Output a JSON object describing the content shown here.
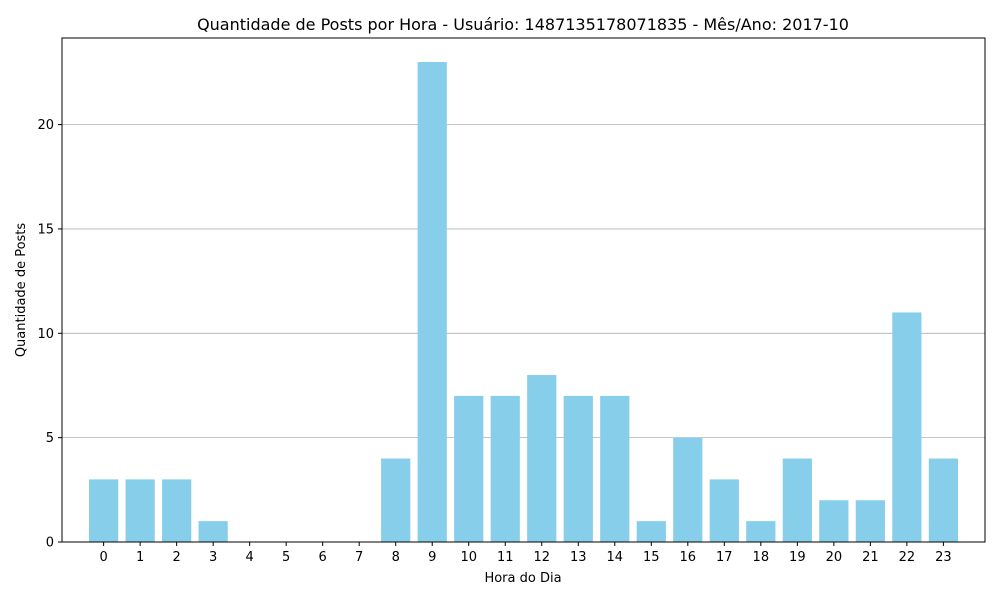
{
  "chart_data": {
    "type": "bar",
    "title": "Quantidade de Posts por Hora - Usuário: 1487135178071835 - Mês/Ano: 2017-10",
    "xlabel": "Hora do Dia",
    "ylabel": "Quantidade de Posts",
    "categories": [
      "0",
      "1",
      "2",
      "3",
      "4",
      "5",
      "6",
      "7",
      "8",
      "9",
      "10",
      "11",
      "12",
      "13",
      "14",
      "15",
      "16",
      "17",
      "18",
      "19",
      "20",
      "21",
      "22",
      "23"
    ],
    "values": [
      3,
      3,
      3,
      1,
      0,
      0,
      0,
      0,
      4,
      23,
      7,
      7,
      8,
      7,
      7,
      1,
      5,
      3,
      1,
      4,
      2,
      2,
      11,
      4
    ],
    "ylim": [
      0,
      24.15
    ],
    "yticks": [
      0,
      5,
      10,
      15,
      20
    ],
    "grid": "y",
    "bar_color": "#87ceeb",
    "grid_color": "#b0b0b0"
  }
}
